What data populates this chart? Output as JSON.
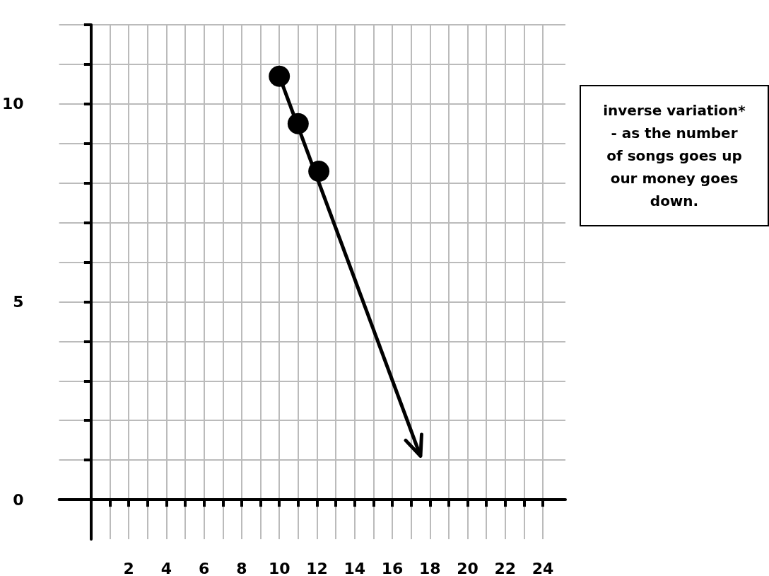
{
  "chart_data": {
    "type": "scatter",
    "series": [
      {
        "color": "#000000",
        "marker": "circle",
        "x": [
          10,
          11,
          12.1
        ],
        "values": [
          10.7,
          9.5,
          8.3
        ]
      },
      {
        "type": "line",
        "color": "#000000",
        "x": [
          10,
          17.5
        ],
        "values": [
          10.7,
          1.1
        ]
      }
    ],
    "xlim": [
      -1.7,
      25.2
    ],
    "ylim": [
      -1,
      12
    ],
    "xticks": [
      {
        "value": 1,
        "label": null
      },
      2,
      {
        "value": 3,
        "label": null
      },
      4,
      {
        "value": 5,
        "label": null
      },
      6,
      {
        "value": 7,
        "label": null
      },
      8,
      {
        "value": 9,
        "label": null
      },
      10,
      {
        "value": 11,
        "label": null
      },
      12,
      {
        "value": 13,
        "label": null
      },
      14,
      {
        "value": 15,
        "label": null
      },
      16,
      {
        "value": 17,
        "label": null
      },
      18,
      {
        "value": 19,
        "label": null
      },
      20,
      {
        "value": 21,
        "label": null
      },
      22,
      {
        "value": 23,
        "label": null
      },
      24
    ],
    "yticks": [
      0,
      {
        "value": 1,
        "label": null
      },
      {
        "value": 2,
        "label": null
      },
      {
        "value": 3,
        "label": null
      },
      {
        "value": 4,
        "label": null
      },
      5,
      {
        "value": 6,
        "label": null
      },
      {
        "value": 7,
        "label": null
      },
      {
        "value": 8,
        "label": null
      },
      {
        "value": 9,
        "label": null
      },
      10,
      {
        "value": 11,
        "label": null
      },
      {
        "value": 12,
        "label": null
      }
    ],
    "grid": true,
    "annotations": [
      "inverse variation* - as the number of songs goes up our money goes down."
    ]
  }
}
